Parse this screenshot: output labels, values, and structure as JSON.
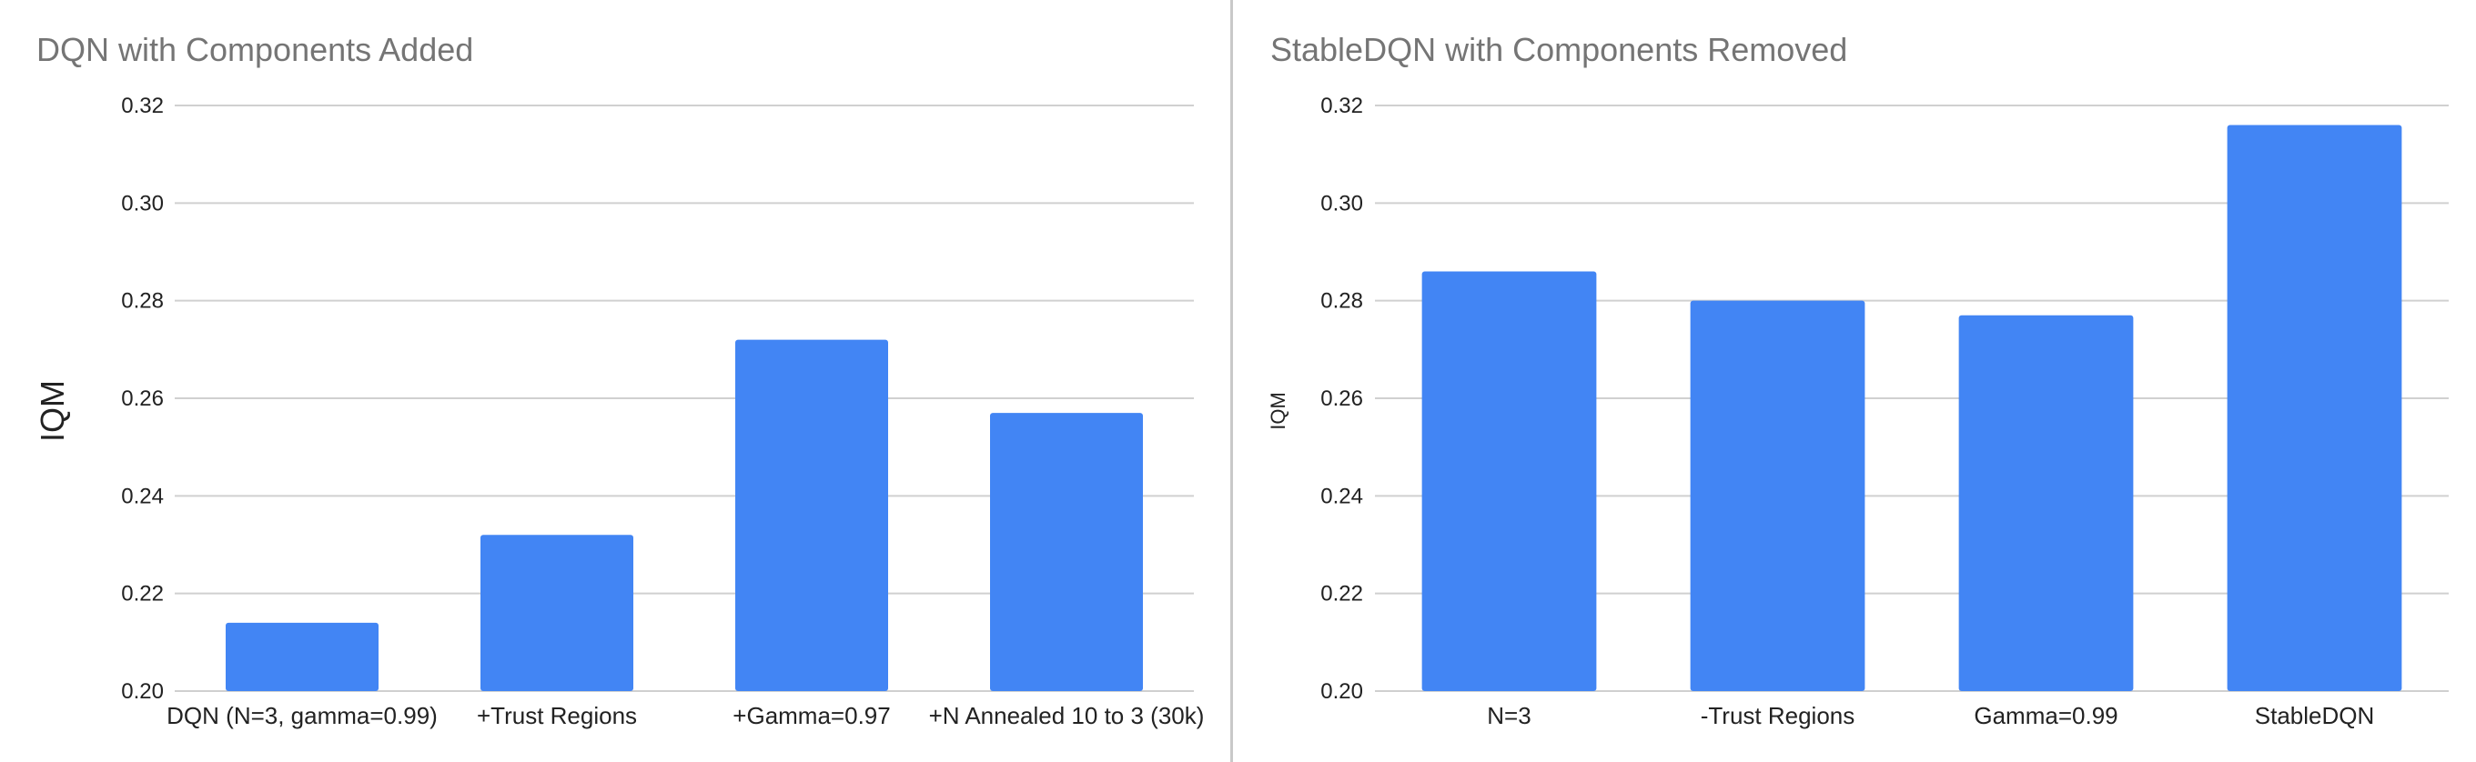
{
  "colors": {
    "bar": "#4285f4",
    "grid": "#d0d0d0",
    "title": "#757575",
    "text": "#222222"
  },
  "chart_data": [
    {
      "type": "bar",
      "title": "DQN with Components Added",
      "ylabel": "IQM",
      "xlabel": "",
      "categories": [
        "DQN (N=3, gamma=0.99)",
        "+Trust Regions",
        "+Gamma=0.97",
        "+N Annealed 10 to 3 (30k)"
      ],
      "values": [
        0.214,
        0.232,
        0.272,
        0.257
      ],
      "ylim": [
        0.2,
        0.32
      ],
      "yticks": [
        "0.20",
        "0.22",
        "0.24",
        "0.26",
        "0.28",
        "0.30",
        "0.32"
      ],
      "grid": true,
      "legend": "none"
    },
    {
      "type": "bar",
      "title": "StableDQN with Components Removed",
      "ylabel": "IQM",
      "xlabel": "",
      "categories": [
        "N=3",
        "-Trust Regions",
        "Gamma=0.99",
        "StableDQN"
      ],
      "values": [
        0.286,
        0.28,
        0.277,
        0.316
      ],
      "ylim": [
        0.2,
        0.32
      ],
      "yticks": [
        "0.20",
        "0.22",
        "0.24",
        "0.26",
        "0.28",
        "0.30",
        "0.32"
      ],
      "grid": true,
      "legend": "none"
    }
  ]
}
